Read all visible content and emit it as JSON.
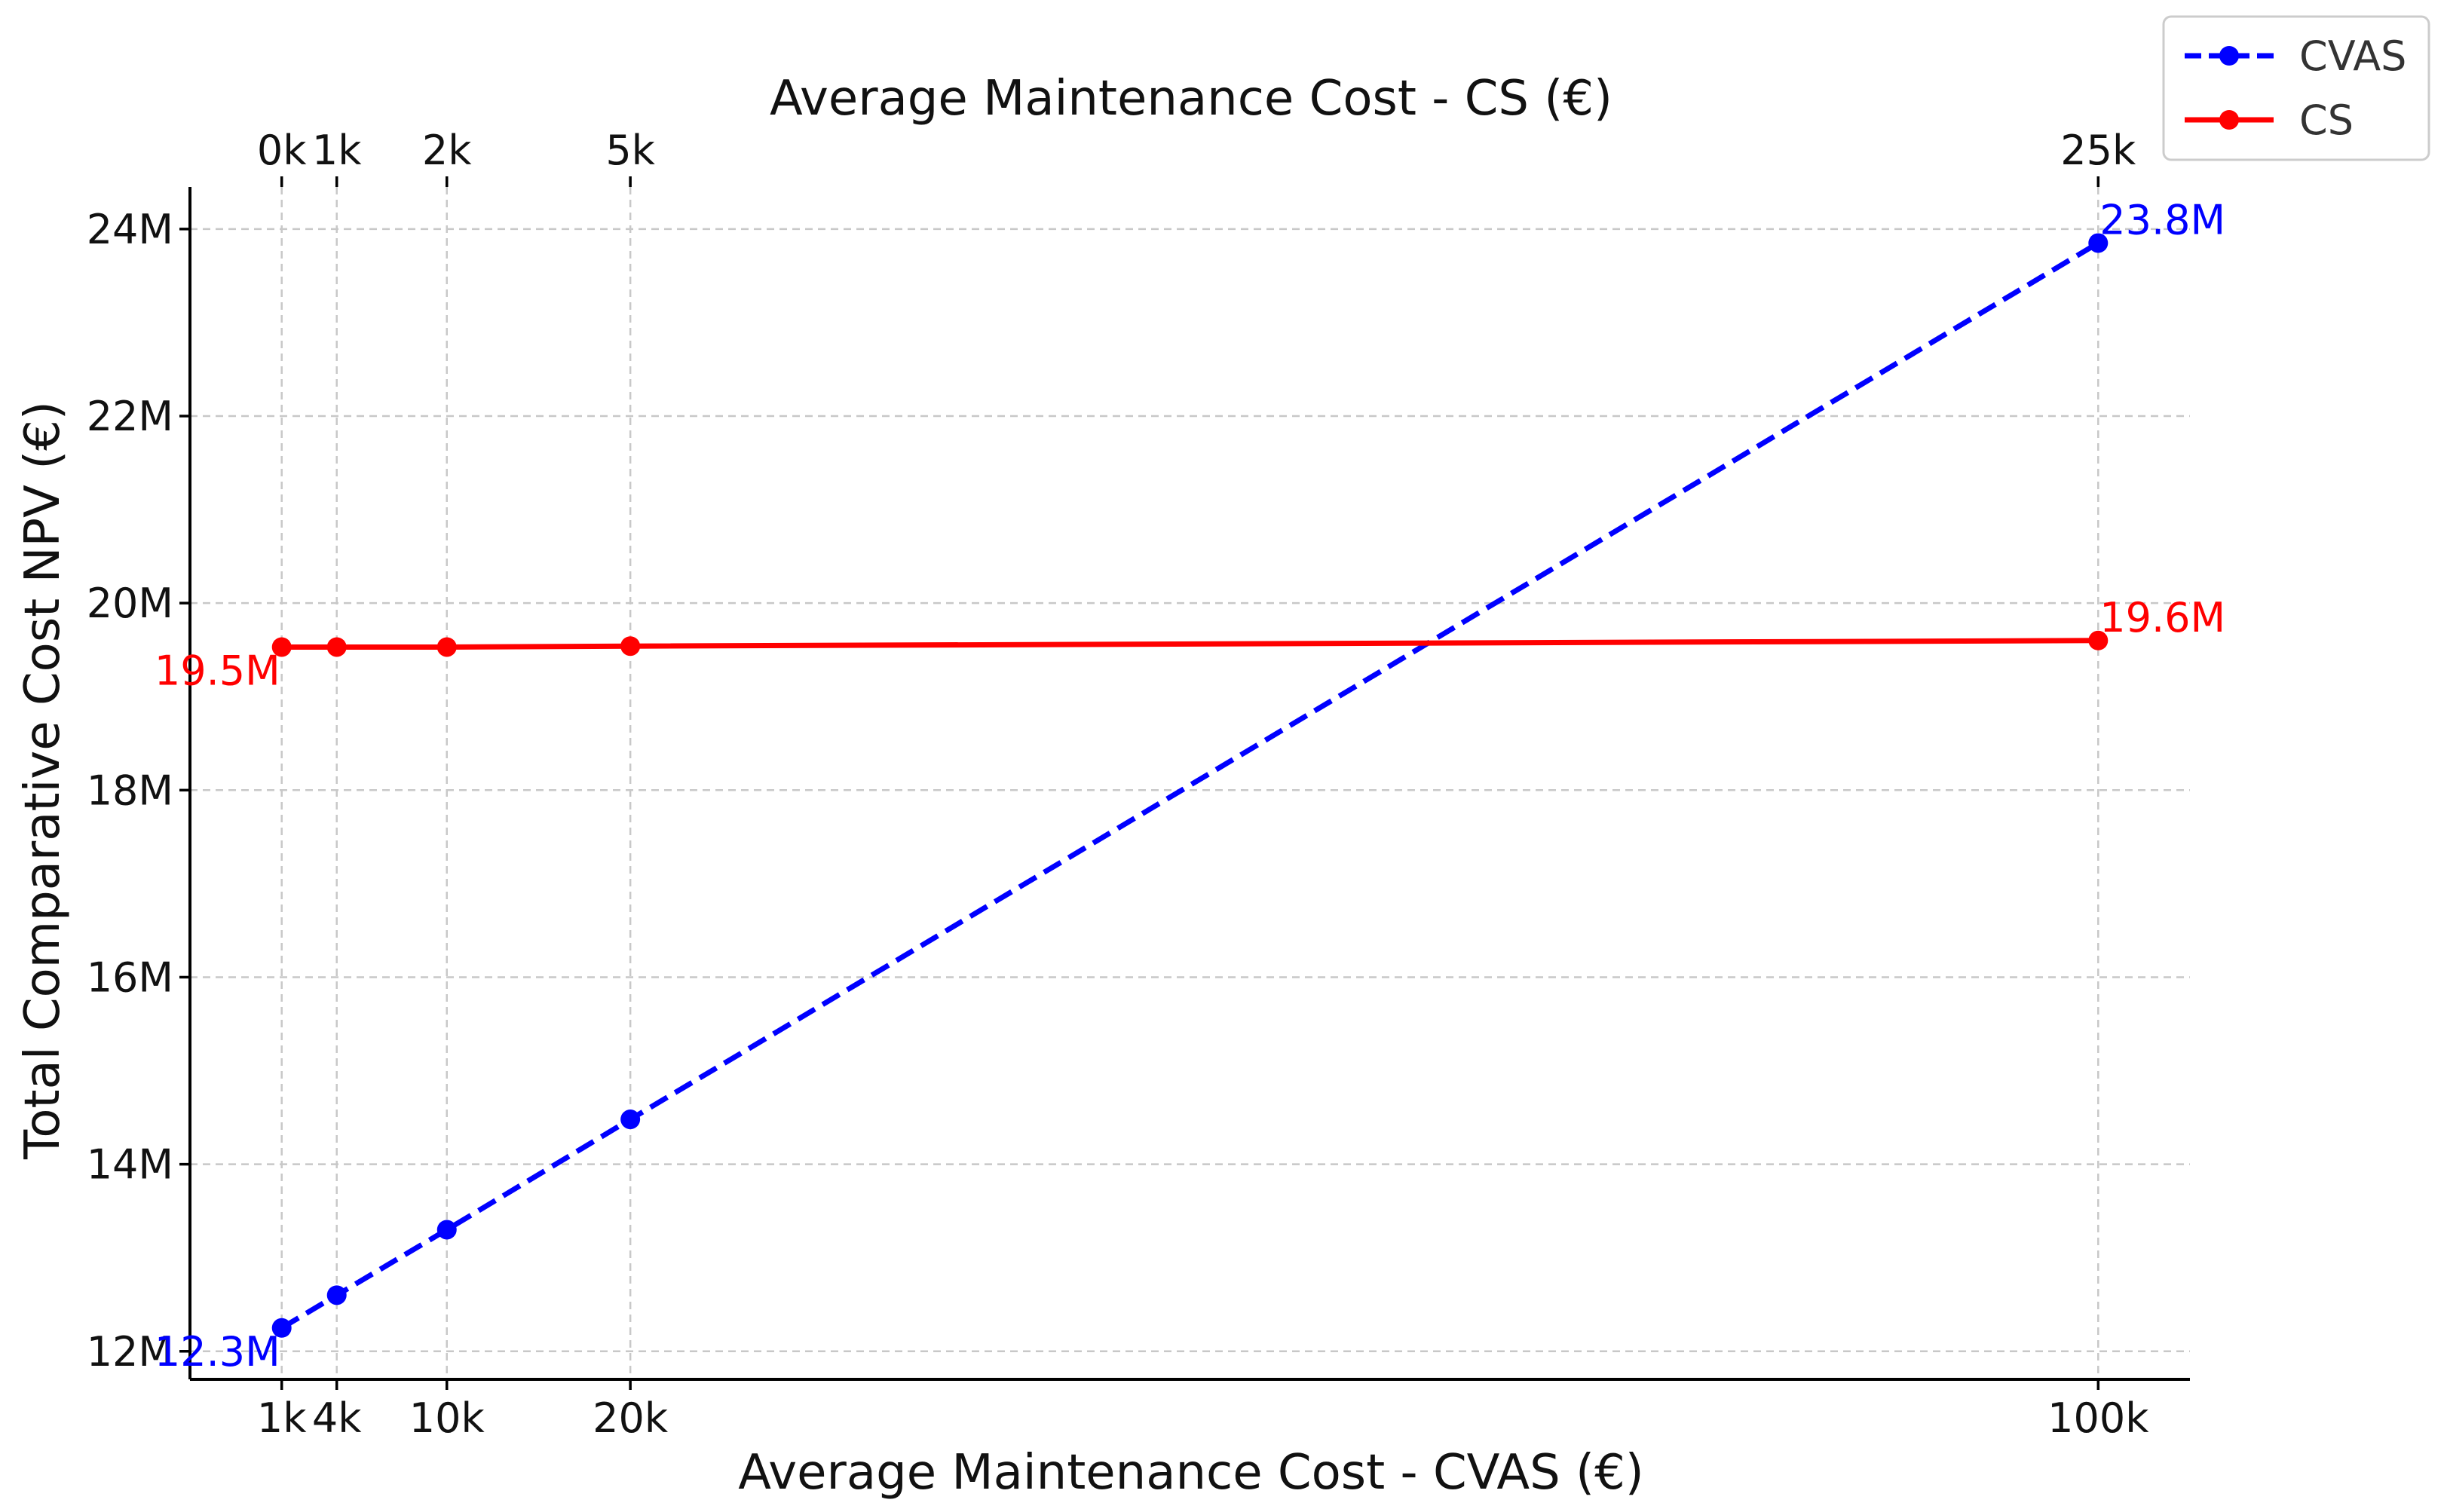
{
  "chart_data": {
    "type": "line",
    "title": "Average Maintenance Cost - CS (€)",
    "xlabel": "Average Maintenance Cost - CVAS (€)",
    "ylabel": "Total Comparative Cost NPV (€)",
    "x_values": [
      1000,
      4000,
      10000,
      20000,
      100000
    ],
    "x_tick_labels": [
      "1k",
      "4k",
      "10k",
      "20k",
      "100k"
    ],
    "x_top_tick_labels": [
      "0k",
      "1k",
      "2k",
      "5k",
      "25k"
    ],
    "xlim": [
      -4000,
      105000
    ],
    "ylim": [
      11700000,
      24450000
    ],
    "y_ticks": [
      12000000,
      14000000,
      16000000,
      18000000,
      20000000,
      22000000,
      24000000
    ],
    "y_tick_labels": [
      "12M",
      "14M",
      "16M",
      "18M",
      "20M",
      "22M",
      "24M"
    ],
    "grid": true,
    "legend_position": "top-right",
    "series": [
      {
        "name": "CVAS",
        "color": "#0000ff",
        "style": "dashed",
        "marker": "circle",
        "values": [
          12250000,
          12600000,
          13300000,
          14480000,
          23850000
        ]
      },
      {
        "name": "CS",
        "color": "#ff0000",
        "style": "solid",
        "marker": "circle",
        "values": [
          19530000,
          19530000,
          19530000,
          19540000,
          19600000
        ]
      }
    ],
    "annotations": [
      {
        "text": "12.3M",
        "series": "CVAS",
        "point": "first",
        "color": "#0000ff"
      },
      {
        "text": "23.8M",
        "series": "CVAS",
        "point": "last",
        "color": "#0000ff"
      },
      {
        "text": "19.5M",
        "series": "CS",
        "point": "first",
        "color": "#ff0000"
      },
      {
        "text": "19.6M",
        "series": "CS",
        "point": "last",
        "color": "#ff0000"
      }
    ]
  }
}
